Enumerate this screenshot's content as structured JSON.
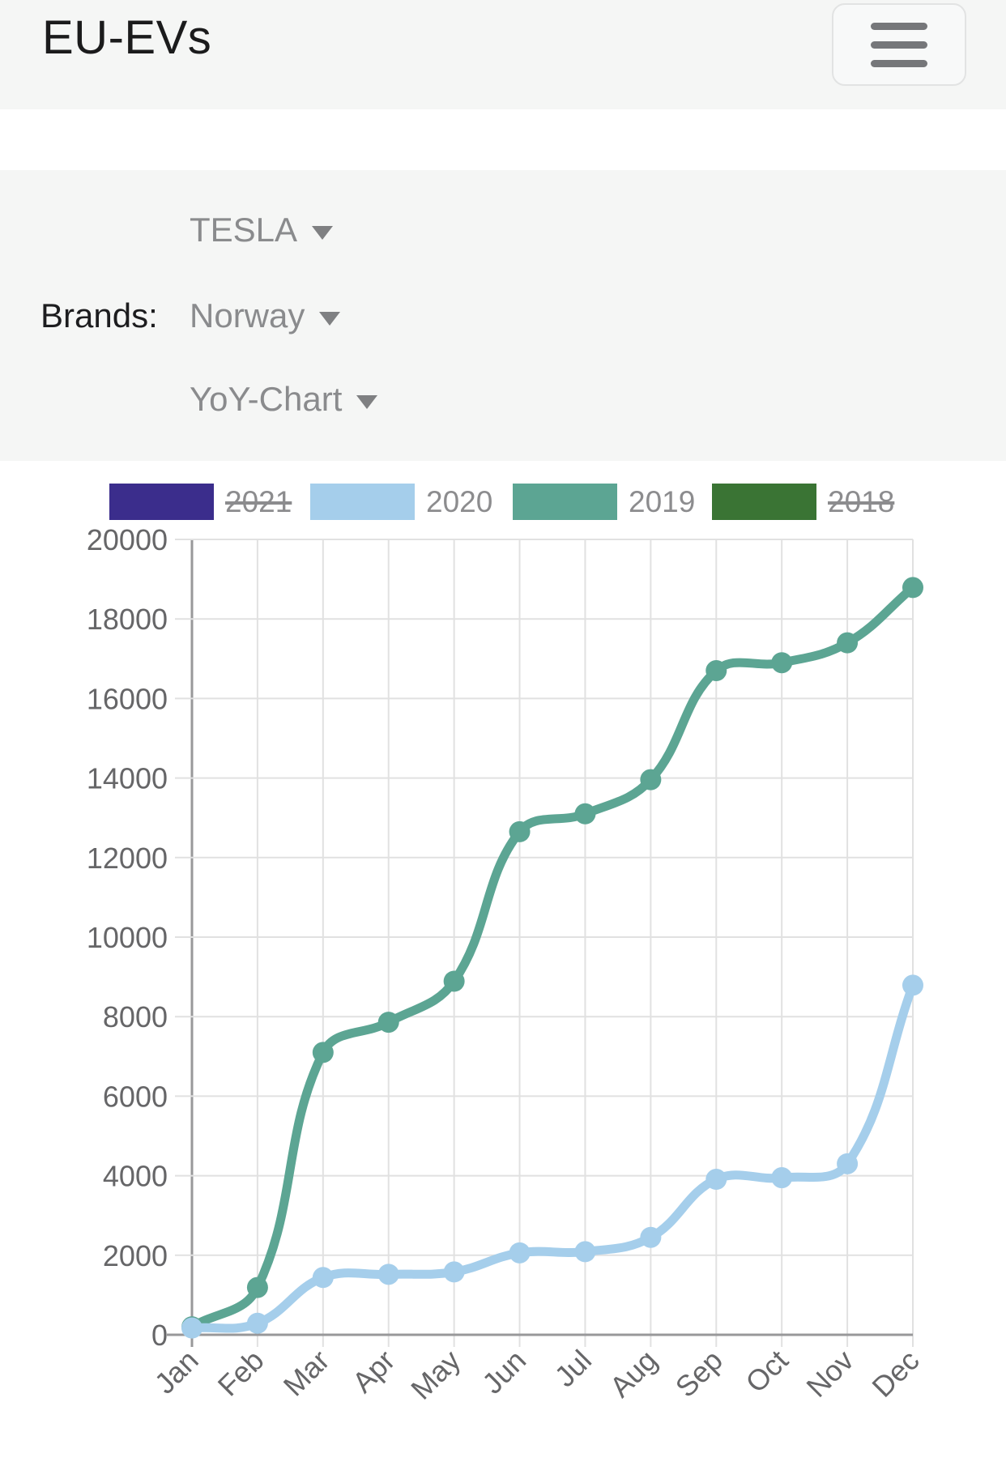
{
  "header": {
    "title": "EU-EVs",
    "menu_icon": "hamburger-icon"
  },
  "filters": {
    "brands_label": "Brands:",
    "dropdowns": [
      {
        "value": "TESLA",
        "icon": "chevron-down-icon"
      },
      {
        "value": "Norway",
        "icon": "chevron-down-icon"
      },
      {
        "value": "YoY-Chart",
        "icon": "chevron-down-icon"
      }
    ]
  },
  "colors": {
    "header_bg": "#f5f6f5",
    "panel_bg": "#f5f6f5",
    "grid_line": "#e1e1e1",
    "axis_line": "#98989a",
    "tick_text": "#666668",
    "legend_text": "#8c8c8e"
  },
  "chart_data": {
    "type": "line",
    "x": [
      "Jan",
      "Feb",
      "Mar",
      "Apr",
      "May",
      "Jun",
      "Jul",
      "Aug",
      "Sep",
      "Oct",
      "Nov",
      "Dec"
    ],
    "series": [
      {
        "name": "2021",
        "color": "#3b2d8c",
        "hidden": true,
        "struck_in_legend": true,
        "values": []
      },
      {
        "name": "2020",
        "color": "#a5ceeb",
        "hidden": false,
        "struck_in_legend": false,
        "values": [
          170,
          290,
          1440,
          1520,
          1580,
          2060,
          2090,
          2450,
          3910,
          3950,
          4300,
          8790
        ]
      },
      {
        "name": "2019",
        "color": "#5ca593",
        "hidden": false,
        "struck_in_legend": false,
        "values": [
          200,
          1190,
          7100,
          7860,
          8890,
          12650,
          13100,
          13960,
          16700,
          16900,
          17400,
          18790
        ]
      },
      {
        "name": "2018",
        "color": "#3a7434",
        "hidden": true,
        "struck_in_legend": true,
        "values": []
      }
    ],
    "title": "",
    "xlabel": "",
    "ylabel": "",
    "ylim": [
      0,
      20000
    ],
    "ytick_step": 2000,
    "y_tick_labels": [
      "0",
      "2000",
      "4000",
      "6000",
      "8000",
      "10000",
      "12000",
      "14000",
      "16000",
      "18000",
      "20000"
    ],
    "grid": true,
    "legend_position": "top",
    "x_label_rotation": -45
  }
}
